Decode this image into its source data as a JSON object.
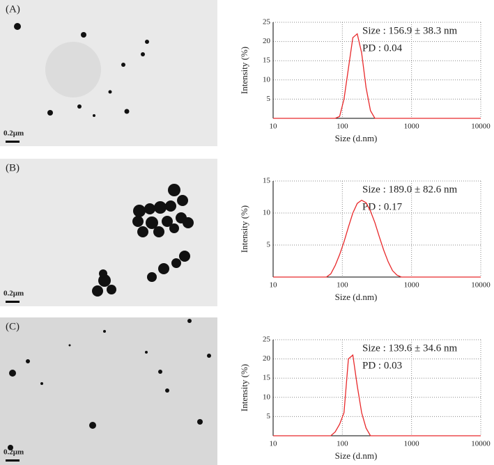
{
  "chart_data": [
    {
      "type": "line",
      "panel_label": "(A)",
      "image_scale_label": "0.2μm",
      "annotations": [
        "Size : 156.9 ± 38.3 nm",
        "PD : 0.04"
      ],
      "xlabel": "Size (d.nm)",
      "ylabel": "Intensity (%)",
      "xscale": "log",
      "grid": true,
      "xlim": [
        10,
        10000
      ],
      "xticks": [
        10,
        100,
        1000,
        10000
      ],
      "ylim": [
        0,
        25
      ],
      "yticks": [
        5,
        10,
        15,
        20,
        25
      ],
      "series": [
        {
          "color": "#e8282a",
          "x": [
            10,
            78.8,
            91.3,
            105.7,
            122.4,
            141.8,
            164.2,
            190.1,
            220.2,
            255,
            295.3,
            10000
          ],
          "values": [
            0,
            0,
            0.5,
            5,
            13,
            21,
            22,
            17,
            8,
            2,
            0,
            0
          ]
        }
      ]
    },
    {
      "type": "line",
      "panel_label": "(B)",
      "image_scale_label": "0.2μm",
      "annotations": [
        "Size : 189.0 ± 82.6 nm",
        "PD : 0.17"
      ],
      "xlabel": "Size (d.nm)",
      "ylabel": "Intensity (%)",
      "xscale": "log",
      "grid": true,
      "xlim": [
        10,
        10000
      ],
      "xticks": [
        10,
        100,
        1000,
        10000
      ],
      "ylim": [
        0,
        15
      ],
      "yticks": [
        5,
        10,
        15
      ],
      "series": [
        {
          "color": "#e8282a",
          "x": [
            10,
            58.8,
            68.1,
            78.8,
            91.3,
            105.7,
            122.4,
            141.8,
            164.2,
            190.1,
            220.2,
            255,
            295.3,
            342,
            396.1,
            458.7,
            531.2,
            615.1,
            712.4,
            10000
          ],
          "values": [
            0,
            0,
            0.5,
            1.8,
            3.5,
            5.5,
            7.8,
            10,
            11.5,
            12,
            11.6,
            10.3,
            8.5,
            6.3,
            4.2,
            2.4,
            1,
            0.3,
            0,
            0
          ]
        }
      ]
    },
    {
      "type": "line",
      "panel_label": "(C)",
      "image_scale_label": "0.2μm",
      "annotations": [
        "Size : 139.6 ± 34.6 nm",
        "PD : 0.03"
      ],
      "xlabel": "Size (d.nm)",
      "ylabel": "Intensity (%)",
      "xscale": "log",
      "grid": true,
      "xlim": [
        10,
        10000
      ],
      "xticks": [
        10,
        100,
        1000,
        10000
      ],
      "ylim": [
        0,
        25
      ],
      "yticks": [
        5,
        10,
        15,
        20,
        25
      ],
      "series": [
        {
          "color": "#e8282a",
          "x": [
            10,
            68.1,
            78.8,
            91.3,
            105.7,
            122.4,
            141.8,
            164.2,
            190.1,
            220.2,
            255,
            295.3,
            10000
          ],
          "values": [
            0,
            0,
            1,
            3,
            6,
            20,
            21,
            13,
            6,
            2,
            0,
            0,
            0
          ]
        }
      ]
    }
  ]
}
